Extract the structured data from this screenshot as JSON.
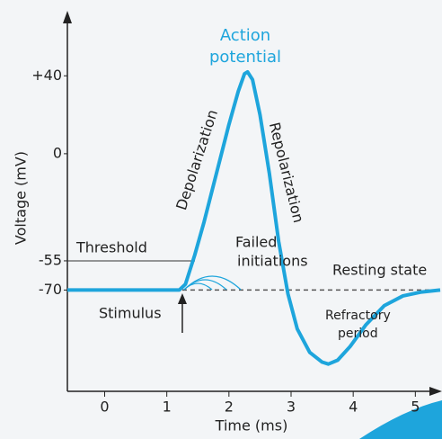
{
  "chart_data": {
    "type": "line",
    "title": [
      "Action",
      "potential"
    ],
    "xlabel": "Time (ms)",
    "ylabel": "Voltage (mV)",
    "x": [
      -0.6,
      1.2,
      1.3,
      1.45,
      1.6,
      1.8,
      2.0,
      2.15,
      2.25,
      2.3,
      2.38,
      2.5,
      2.65,
      2.8,
      2.95,
      3.1,
      3.3,
      3.5,
      3.6,
      3.75,
      3.95,
      4.2,
      4.5,
      4.8,
      5.1,
      5.4
    ],
    "series": [
      {
        "name": "Action potential",
        "color": "#1ea5dc",
        "values": [
          -70,
          -70,
          -67,
          -52,
          -35,
          -10,
          15,
          32,
          41,
          42,
          38,
          20,
          -10,
          -45,
          -72,
          -90,
          -102,
          -107,
          -108,
          -106,
          -99,
          -88,
          -78,
          -73,
          -71,
          -70
        ]
      }
    ],
    "xlim": [
      -0.6,
      5.4
    ],
    "ylim": [
      -122,
      72
    ],
    "xticks": [
      0,
      1,
      2,
      3,
      4,
      5
    ],
    "yticks": [
      {
        "value": 40,
        "label": "+40"
      },
      0,
      -55,
      -70
    ],
    "threshold": -55,
    "resting": -70,
    "stimulus_time": 1.25,
    "annotations": [
      "Depolarization",
      "Repolarization",
      "Threshold",
      "Failed",
      "initiations",
      "Resting state",
      "Stimulus",
      "Refractory",
      "period"
    ]
  }
}
